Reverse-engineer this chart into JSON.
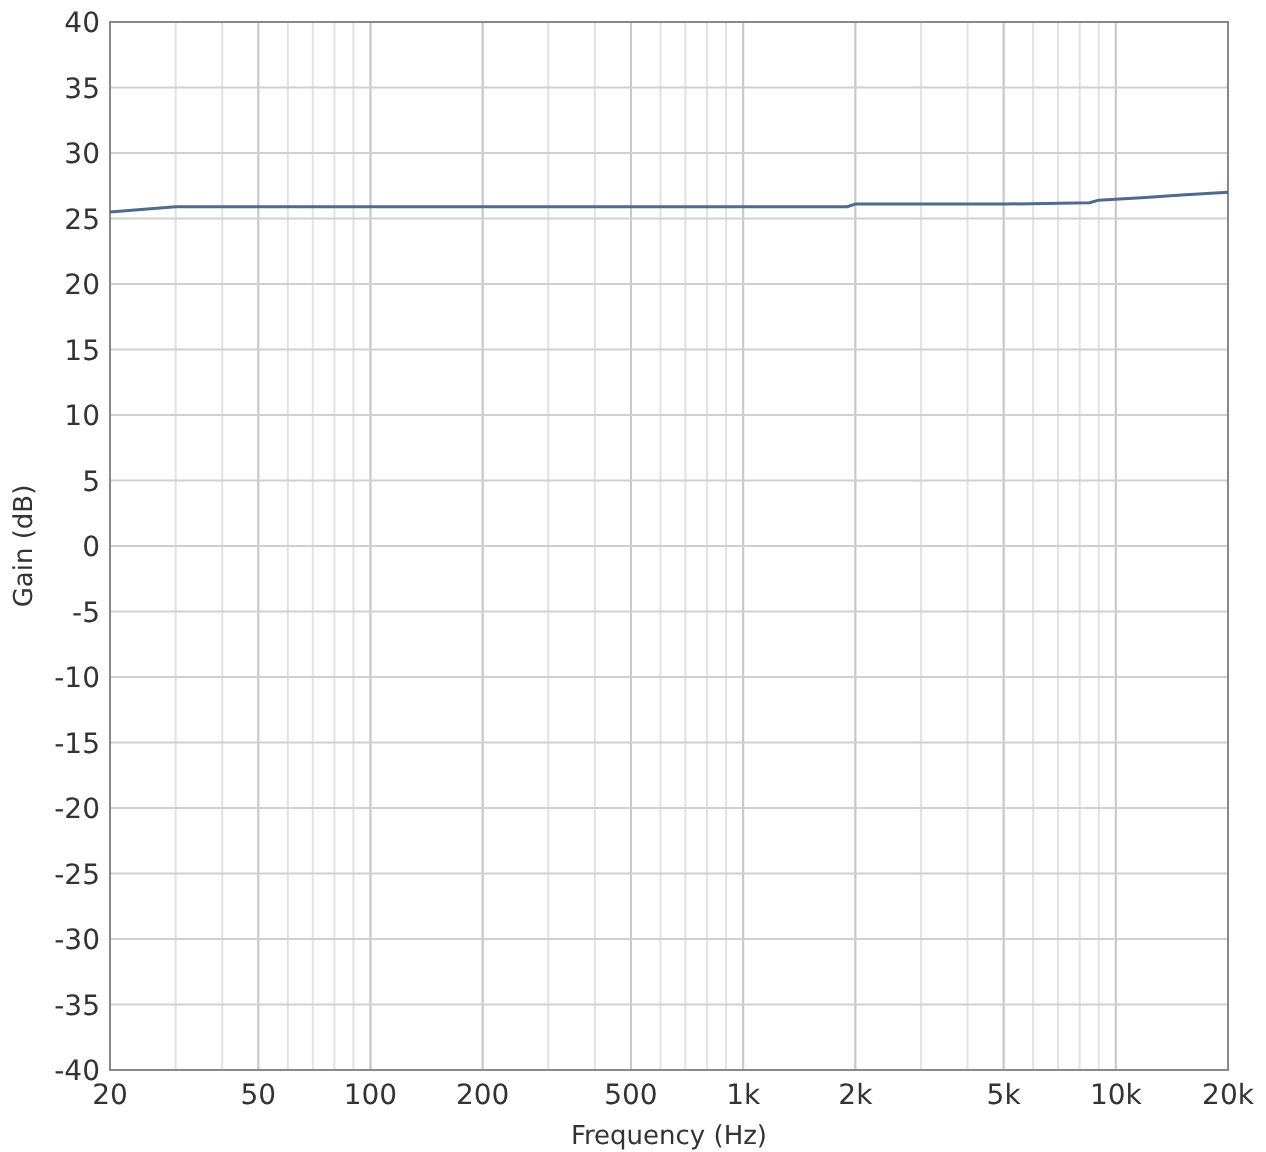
{
  "chart_data": {
    "type": "line",
    "xlabel": "Frequency (Hz)",
    "ylabel": "Gain (dB)",
    "log": "x",
    "x": [
      20,
      30,
      50,
      100,
      200,
      500,
      1000,
      1900,
      2000,
      5000,
      8500,
      9000,
      12000,
      15000,
      20000
    ],
    "series": [
      {
        "color": "#4e6a8e",
        "values": [
          25.5,
          25.9,
          25.9,
          25.9,
          25.9,
          25.9,
          25.9,
          25.9,
          26.1,
          26.1,
          26.2,
          26.4,
          26.6,
          26.8,
          27.0
        ]
      }
    ],
    "xlim": [
      20,
      20000
    ],
    "ylim": [
      -40,
      40
    ],
    "xticks": [
      20,
      50,
      100,
      200,
      500,
      {
        "value": 1000,
        "label": "1k"
      },
      {
        "value": 2000,
        "label": "2k"
      },
      {
        "value": 5000,
        "label": "5k"
      },
      {
        "value": 10000,
        "label": "10k"
      },
      {
        "value": 20000,
        "label": "20k"
      }
    ],
    "yticks": [
      -40,
      -35,
      -30,
      -25,
      -20,
      -15,
      -10,
      -5,
      0,
      5,
      10,
      15,
      20,
      25,
      30,
      35,
      40
    ],
    "grid": true,
    "marker": "none",
    "line_style": "solid"
  }
}
